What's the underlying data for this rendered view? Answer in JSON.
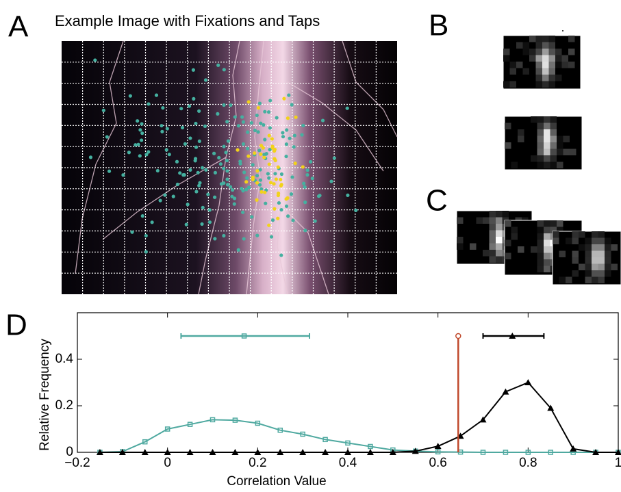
{
  "panel_labels": [
    "A",
    "B",
    "C",
    "D"
  ],
  "image_title": "Example Image with Fixations and Taps",
  "chart_data": {
    "type": "line",
    "x_label": "Correlation Value",
    "y_label": "Relative Frequency",
    "xlim": [
      -0.2,
      1
    ],
    "ylim": [
      0,
      0.6
    ],
    "xticks": [
      {
        "value": -0.2,
        "label": "−0.2"
      },
      0,
      0.2,
      0.4,
      0.6,
      0.8,
      1
    ],
    "yticks": [
      0,
      0.2,
      0.4
    ],
    "x": [
      -0.15,
      -0.1,
      -0.05,
      0,
      0.05,
      0.1,
      0.15,
      0.2,
      0.25,
      0.3,
      0.35,
      0.4,
      0.45,
      0.5,
      0.55,
      0.6,
      0.65,
      0.7,
      0.75,
      0.8,
      0.85,
      0.9,
      0.95,
      1
    ],
    "series": [
      {
        "color": "#4fa9a0",
        "marker": "square",
        "values": [
          0,
          0.003,
          0.045,
          0.1,
          0.12,
          0.14,
          0.138,
          0.125,
          0.095,
          0.078,
          0.055,
          0.04,
          0.025,
          0.01,
          0.005,
          0.002,
          0.001,
          0,
          0,
          0,
          0,
          0,
          0,
          0
        ]
      },
      {
        "color": "#000000",
        "marker": "triangle",
        "values": [
          0,
          0,
          0,
          0,
          0,
          0,
          0,
          0,
          0,
          0,
          0,
          0,
          0,
          0,
          0.005,
          0.026,
          0.07,
          0.14,
          0.26,
          0.3,
          0.19,
          0.015,
          0,
          0
        ]
      }
    ],
    "summaries": [
      {
        "color": "#4fa9a0",
        "marker": "square",
        "y": 0.5,
        "mean": 0.17,
        "low": 0.03,
        "high": 0.315
      },
      {
        "color": "#000000",
        "marker": "triangle",
        "y": 0.5,
        "mean": 0.765,
        "low": 0.7,
        "high": 0.835
      }
    ],
    "threshold": {
      "color": "#c0492b",
      "x": 0.645,
      "y": 0.5
    }
  }
}
